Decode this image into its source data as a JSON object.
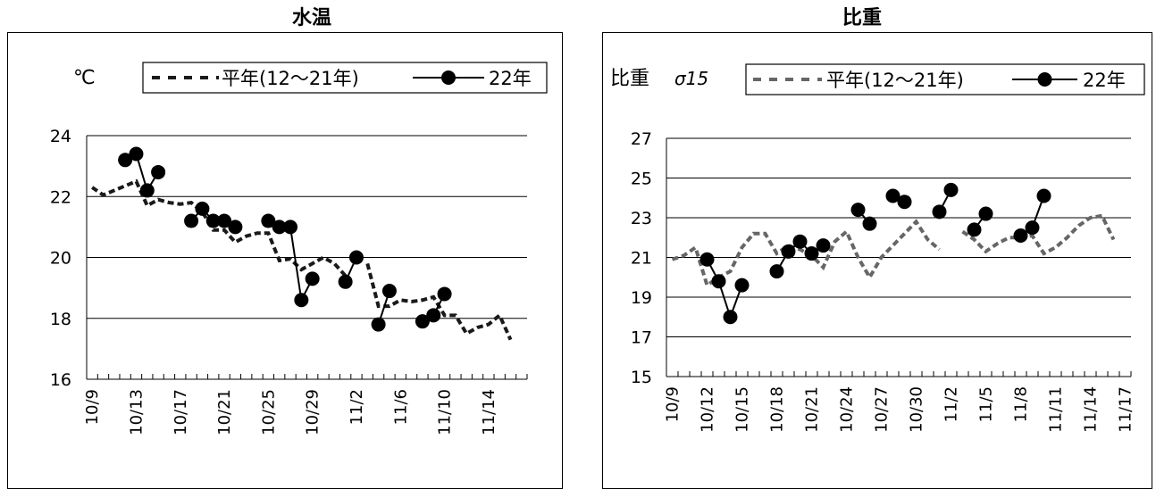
{
  "legend_dash_label": "平年(12～21年)",
  "legend_line_label": "22年",
  "chart_data": [
    {
      "type": "line",
      "title": "水温",
      "ylabel": "℃",
      "ylim": [
        16,
        24
      ],
      "yticks": [
        16,
        18,
        20,
        22,
        24
      ],
      "xdomain": [
        "10/9",
        "11/17"
      ],
      "xtick_labels": [
        "10/9",
        "10/13",
        "10/17",
        "10/21",
        "10/25",
        "10/29",
        "11/2",
        "11/6",
        "11/10",
        "11/14"
      ],
      "grid": true,
      "legend_position": "top",
      "series": [
        {
          "name": "平年(12～21年)",
          "style": "dashed",
          "color": "#1a1a1a",
          "x": [
            "10/9",
            "10/10",
            "10/11",
            "10/12",
            "10/13",
            "10/14",
            "10/15",
            "10/16",
            "10/17",
            "10/18",
            "10/19",
            "10/20",
            "10/21",
            "10/22",
            "10/23",
            "10/24",
            "10/25",
            "10/26",
            "10/27",
            "10/28",
            "10/29",
            "10/30",
            "10/31",
            "11/1",
            "11/2",
            "11/3",
            "11/4",
            "11/5",
            "11/6",
            "11/7",
            "11/8",
            "11/9",
            "11/10",
            "11/11",
            "11/12",
            "11/13",
            "11/14",
            "11/15",
            "11/16",
            "11/17"
          ],
          "values": [
            22.3,
            22.05,
            22.2,
            22.35,
            22.5,
            21.7,
            21.9,
            21.8,
            21.75,
            21.8,
            21.5,
            20.9,
            20.9,
            20.5,
            20.7,
            20.8,
            20.8,
            19.9,
            19.95,
            19.6,
            19.8,
            20.0,
            19.8,
            19.4,
            null,
            19.8,
            18.4,
            18.4,
            18.6,
            18.55,
            18.6,
            18.7,
            18.1,
            18.1,
            17.5,
            17.7,
            17.8,
            18.1,
            17.3,
            null
          ]
        },
        {
          "name": "22年",
          "style": "solid-marker",
          "color": "#000000",
          "segments": [
            {
              "x": [
                "10/12",
                "10/13",
                "10/14",
                "10/15"
              ],
              "values": [
                23.2,
                23.4,
                22.2,
                22.8
              ]
            },
            {
              "x": [
                "10/18",
                "10/19",
                "10/20",
                "10/21",
                "10/22"
              ],
              "values": [
                21.2,
                21.6,
                21.2,
                21.2,
                21.0
              ]
            },
            {
              "x": [
                "10/25",
                "10/26",
                "10/27",
                "10/28",
                "10/29"
              ],
              "values": [
                21.2,
                21.0,
                21.0,
                18.6,
                19.3
              ]
            },
            {
              "x": [
                "11/1",
                "11/2"
              ],
              "values": [
                19.2,
                20.0
              ]
            },
            {
              "x": [
                "11/4",
                "11/5"
              ],
              "values": [
                17.8,
                18.9
              ]
            },
            {
              "x": [
                "11/8",
                "11/9",
                "11/10"
              ],
              "values": [
                17.9,
                18.1,
                18.8
              ]
            }
          ]
        }
      ]
    },
    {
      "type": "line",
      "title": "比重",
      "ylabel": "比重",
      "ylabel_suffix": "σ15",
      "ylim": [
        15,
        27
      ],
      "yticks": [
        15,
        17,
        19,
        21,
        23,
        25,
        27
      ],
      "xdomain": [
        "10/9",
        "11/17"
      ],
      "xtick_labels": [
        "10/9",
        "10/12",
        "10/15",
        "10/18",
        "10/21",
        "10/24",
        "10/27",
        "10/30",
        "11/2",
        "11/5",
        "11/8",
        "11/11",
        "11/14",
        "11/17"
      ],
      "grid": true,
      "legend_position": "top",
      "series": [
        {
          "name": "平年(12～21年)",
          "style": "dashed",
          "color": "#666666",
          "x": [
            "10/9",
            "10/10",
            "10/11",
            "10/12",
            "10/13",
            "10/14",
            "10/15",
            "10/16",
            "10/17",
            "10/18",
            "10/19",
            "10/20",
            "10/21",
            "10/22",
            "10/23",
            "10/24",
            "10/25",
            "10/26",
            "10/27",
            "10/28",
            "10/29",
            "10/30",
            "10/31",
            "11/1",
            "11/2",
            "11/3",
            "11/4",
            "11/5",
            "11/6",
            "11/7",
            "11/8",
            "11/9",
            "11/10",
            "11/11",
            "11/12",
            "11/13",
            "11/14",
            "11/15",
            "11/16",
            "11/17"
          ],
          "values": [
            20.9,
            21.1,
            21.5,
            19.6,
            20.0,
            20.3,
            21.5,
            22.2,
            22.2,
            21.2,
            21.6,
            21.4,
            21.1,
            20.5,
            21.8,
            22.3,
            21.0,
            20.0,
            21.0,
            21.6,
            22.2,
            22.8,
            21.9,
            21.4,
            null,
            22.3,
            21.9,
            21.3,
            21.7,
            22.0,
            22.0,
            22.1,
            21.2,
            21.5,
            22.0,
            22.6,
            23.0,
            23.1,
            21.9,
            null
          ]
        },
        {
          "name": "22年",
          "style": "solid-marker",
          "color": "#000000",
          "segments": [
            {
              "x": [
                "10/12",
                "10/13",
                "10/14",
                "10/15"
              ],
              "values": [
                20.9,
                19.8,
                18.0,
                19.6
              ]
            },
            {
              "x": [
                "10/18",
                "10/19",
                "10/20",
                "10/21",
                "10/22"
              ],
              "values": [
                20.3,
                21.3,
                21.8,
                21.2,
                21.6
              ]
            },
            {
              "x": [
                "10/25",
                "10/26"
              ],
              "values": [
                23.4,
                22.7
              ]
            },
            {
              "x": [
                "10/28",
                "10/29"
              ],
              "values": [
                24.1,
                23.8
              ]
            },
            {
              "x": [
                "11/1",
                "11/2"
              ],
              "values": [
                23.3,
                24.4
              ]
            },
            {
              "x": [
                "11/4",
                "11/5"
              ],
              "values": [
                22.4,
                23.2
              ]
            },
            {
              "x": [
                "11/8",
                "11/9",
                "11/10"
              ],
              "values": [
                22.1,
                22.5,
                24.1
              ]
            }
          ]
        }
      ]
    }
  ]
}
